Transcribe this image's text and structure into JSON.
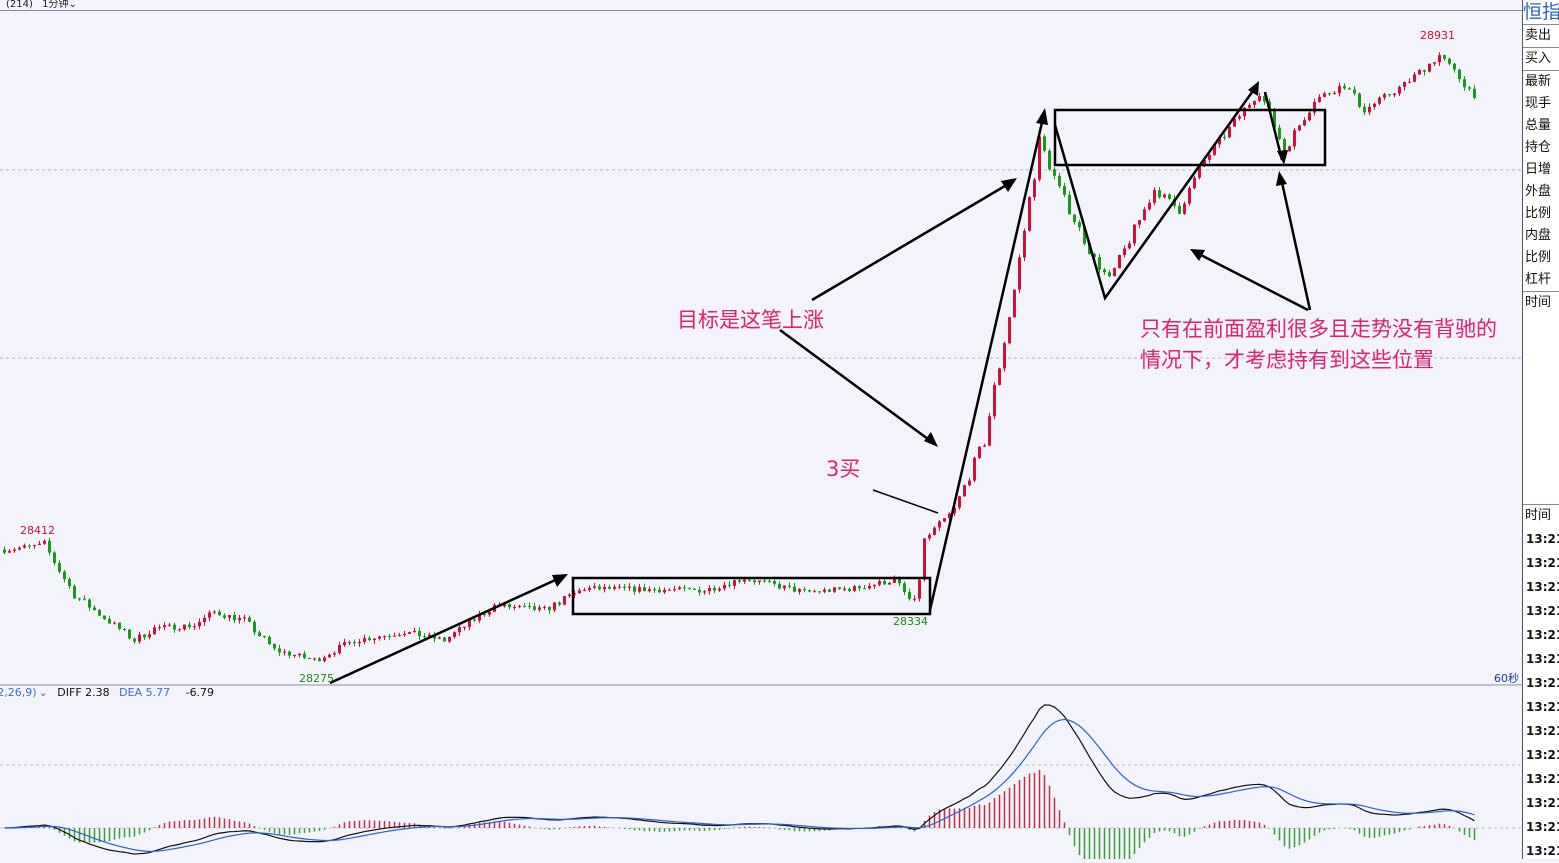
{
  "topbar": {
    "code": "(214)",
    "period": "1分钟",
    "chevron": "chevron-down-icon"
  },
  "right_panel": {
    "title": "恒指",
    "quote_rows": [
      "卖出",
      "买入"
    ],
    "stat_rows": [
      "最新",
      "现手",
      "总量",
      "持仓",
      "日增",
      "外盘",
      "比例",
      "内盘",
      "比例",
      "杠杆"
    ],
    "time_header_top": "时间",
    "time_header": "时间",
    "times": [
      "13:21",
      "13:21",
      "13:21",
      "13:21",
      "13:21",
      "13:21",
      "13:21",
      "13:21",
      "13:21",
      "13:21",
      "13:21",
      "13:21",
      "13:21",
      "13:21"
    ]
  },
  "macd": {
    "params": "(12,26,9)",
    "diff_label": "DIFF 2.38",
    "dea_label": "DEA 5.77",
    "macd_value": "-6.79"
  },
  "interval_label": "60秒",
  "annotations": {
    "target": "目标是这笔上涨",
    "third_buy": "3买",
    "note_line1": "只有在前面盈利很多且走势没有背驰的",
    "note_line2": "情况下，才考虑持有到这些位置"
  },
  "colors": {
    "up": "#d0103a",
    "down": "#1a9a1a",
    "diff": "#111111",
    "dea": "#2a62d0",
    "annotation": "#e2206c",
    "background": "#f3f3fb"
  },
  "chart_data": {
    "type": "candlestick",
    "period": "1分钟",
    "price_labels": {
      "high_left": "28412",
      "low_left": "28275",
      "low_mid": "28334",
      "high_right": "28931"
    },
    "close_path": [
      [
        0,
        28397
      ],
      [
        8,
        28402
      ],
      [
        14,
        28349
      ],
      [
        22,
        28317
      ],
      [
        26,
        28301
      ],
      [
        30,
        28314
      ],
      [
        38,
        28317
      ],
      [
        42,
        28331
      ],
      [
        48,
        28322
      ],
      [
        54,
        28291
      ],
      [
        62,
        28280
      ],
      [
        70,
        28301
      ],
      [
        80,
        28310
      ],
      [
        88,
        28301
      ],
      [
        98,
        28338
      ],
      [
        108,
        28333
      ],
      [
        116,
        28356
      ],
      [
        140,
        28354
      ],
      [
        148,
        28367
      ],
      [
        160,
        28352
      ],
      [
        170,
        28356
      ],
      [
        178,
        28365
      ],
      [
        181,
        28344
      ],
      [
        182,
        28333
      ],
      [
        184,
        28407
      ],
      [
        190,
        28439
      ],
      [
        196,
        28513
      ],
      [
        202,
        28672
      ],
      [
        207,
        28830
      ],
      [
        211,
        28778
      ],
      [
        218,
        28704
      ],
      [
        221,
        28682
      ],
      [
        230,
        28778
      ],
      [
        235,
        28757
      ],
      [
        240,
        28809
      ],
      [
        251,
        28883
      ],
      [
        256,
        28820
      ],
      [
        262,
        28873
      ],
      [
        268,
        28889
      ],
      [
        272,
        28862
      ],
      [
        280,
        28889
      ],
      [
        287,
        28920
      ],
      [
        294,
        28878
      ]
    ],
    "indicator": "MACD(12,26,9)",
    "last": {
      "diff": 2.38,
      "dea": 5.77,
      "macd": -6.79
    }
  }
}
